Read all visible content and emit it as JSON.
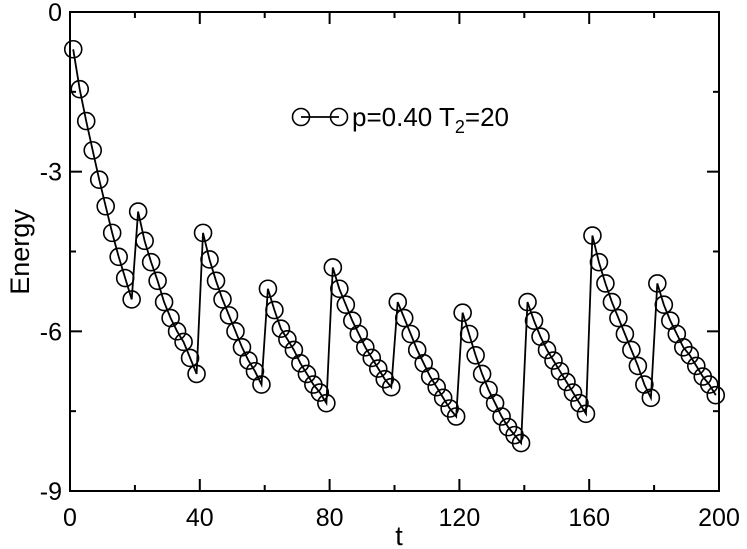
{
  "chart_data": {
    "type": "line",
    "title": "",
    "xlabel": "t",
    "ylabel": "Energy",
    "xlim": [
      0,
      200
    ],
    "ylim": [
      -9,
      0
    ],
    "xticks": [
      0,
      40,
      80,
      120,
      160,
      200
    ],
    "yticks": [
      0,
      -3,
      -6,
      -9
    ],
    "xtick_labels": [
      "0",
      "40",
      "80",
      "120",
      "160",
      "200"
    ],
    "ytick_labels": [
      "0",
      "-3",
      "-6",
      "-9"
    ],
    "grid": false,
    "legend": {
      "placement": "top-center",
      "entries": [
        {
          "prefix": "p=0.40 T",
          "sub": "2",
          "suffix": "=20"
        }
      ]
    },
    "series": [
      {
        "marker": "open-circle",
        "color": "#000000",
        "x": [
          1,
          3,
          5,
          7,
          9,
          11,
          13,
          15,
          17,
          19,
          21,
          23,
          25,
          27,
          29,
          31,
          33,
          35,
          37,
          39,
          41,
          43,
          45,
          47,
          49,
          51,
          53,
          55,
          57,
          59,
          61,
          63,
          65,
          67,
          69,
          71,
          73,
          75,
          77,
          79,
          81,
          83,
          85,
          87,
          89,
          91,
          93,
          95,
          97,
          99,
          101,
          103,
          105,
          107,
          109,
          111,
          113,
          115,
          117,
          119,
          121,
          123,
          125,
          127,
          129,
          131,
          133,
          135,
          137,
          139,
          141,
          143,
          145,
          147,
          149,
          151,
          153,
          155,
          157,
          159,
          161,
          163,
          165,
          167,
          169,
          171,
          173,
          175,
          177,
          179,
          181,
          183,
          185,
          187,
          189,
          191,
          193,
          195,
          197,
          199
        ],
        "y": [
          -0.7,
          -1.45,
          -2.05,
          -2.6,
          -3.15,
          -3.65,
          -4.15,
          -4.6,
          -5.0,
          -5.4,
          -3.75,
          -4.3,
          -4.7,
          -5.05,
          -5.45,
          -5.75,
          -6.0,
          -6.2,
          -6.5,
          -6.8,
          -4.15,
          -4.65,
          -5.05,
          -5.4,
          -5.7,
          -6.0,
          -6.3,
          -6.55,
          -6.75,
          -7.0,
          -5.2,
          -5.6,
          -5.95,
          -6.15,
          -6.35,
          -6.6,
          -6.8,
          -7.0,
          -7.15,
          -7.35,
          -4.8,
          -5.2,
          -5.5,
          -5.8,
          -6.05,
          -6.3,
          -6.5,
          -6.7,
          -6.9,
          -7.05,
          -5.45,
          -5.75,
          -6.05,
          -6.35,
          -6.6,
          -6.85,
          -7.05,
          -7.25,
          -7.45,
          -7.6,
          -5.65,
          -6.05,
          -6.45,
          -6.8,
          -7.1,
          -7.35,
          -7.6,
          -7.8,
          -7.95,
          -8.1,
          -5.45,
          -5.8,
          -6.1,
          -6.35,
          -6.55,
          -6.75,
          -6.95,
          -7.15,
          -7.35,
          -7.55,
          -4.2,
          -4.7,
          -5.1,
          -5.45,
          -5.75,
          -6.05,
          -6.35,
          -6.65,
          -7.0,
          -7.25,
          -5.1,
          -5.5,
          -5.8,
          -6.05,
          -6.3,
          -6.45,
          -6.65,
          -6.85,
          -7.0,
          -7.2
        ]
      }
    ]
  }
}
